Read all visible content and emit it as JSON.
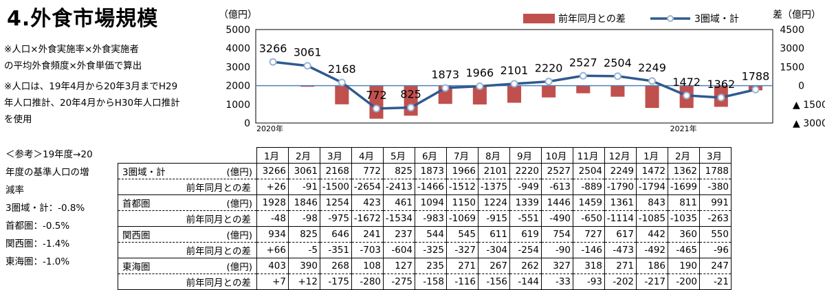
{
  "title": "4.外食市場規模",
  "notes": [
    "※人口×外食実施率×外食実施者",
    "の平均外食頻度×外食単価で算出",
    "※人口は、19年4月から20年3月までH29",
    "年人口推計、20年4月からH30年人口推計",
    "を使用"
  ],
  "reference": [
    "＜参考＞19年度→20",
    "年度の基準人口の増",
    "減率",
    "3圏域・計：‐0.8%",
    "首都圏：‐0.5%",
    "関西圏：‐1.4%",
    "東海圏：‐1.0%"
  ],
  "colors": {
    "bar": "#c0504d",
    "line": "#2f5a8f",
    "zero_line": "#4f81bd"
  },
  "chart_data": {
    "type": "bar+line",
    "categories": [
      "1月",
      "2月",
      "3月",
      "4月",
      "5月",
      "6月",
      "7月",
      "8月",
      "9月",
      "10月",
      "11月",
      "12月",
      "1月",
      "2月",
      "3月"
    ],
    "year_markers": [
      {
        "label": "2020年",
        "index": 0
      },
      {
        "label": "2021年",
        "index": 12
      }
    ],
    "left_axis": {
      "unit": "（億円）",
      "range": [
        0,
        5000
      ],
      "ticks": [
        "5000",
        "4000",
        "3000",
        "2000",
        "1000",
        "0"
      ]
    },
    "right_axis": {
      "unit": "差（億円）",
      "range": [
        -3000,
        4500
      ],
      "ticks": [
        "4500",
        "3000",
        "1500",
        "0",
        "▲ 1500",
        "▲ 3000"
      ],
      "tick_values": [
        4500,
        3000,
        1500,
        0,
        -1500,
        -3000
      ]
    },
    "series": [
      {
        "name": "前年同月との差",
        "type": "bar",
        "axis": "right",
        "values": [
          26,
          -91,
          -1500,
          -2654,
          -2413,
          -1466,
          -1512,
          -1375,
          -949,
          -613,
          -889,
          -1790,
          -1794,
          -1699,
          -380
        ]
      },
      {
        "name": "3圏域・計",
        "type": "line",
        "axis": "left",
        "values": [
          3266,
          3061,
          2168,
          772,
          825,
          1873,
          1966,
          2101,
          2220,
          2527,
          2504,
          2249,
          1472,
          1362,
          1788
        ]
      }
    ],
    "legend_position": "top-right"
  },
  "table": {
    "rows": [
      {
        "name": "3圏域・計",
        "unit": "(億円)",
        "values": [
          "3266",
          "3061",
          "2168",
          "772",
          "825",
          "1873",
          "1966",
          "2101",
          "2220",
          "2527",
          "2504",
          "2249",
          "1472",
          "1362",
          "1788"
        ],
        "diff_label": "前年同月との差",
        "diff": [
          "+26",
          "-91",
          "-1500",
          "-2654",
          "-2413",
          "-1466",
          "-1512",
          "-1375",
          "-949",
          "-613",
          "-889",
          "-1790",
          "-1794",
          "-1699",
          "-380"
        ]
      },
      {
        "name": "首都圏",
        "unit": "(億円)",
        "values": [
          "1928",
          "1846",
          "1254",
          "423",
          "461",
          "1094",
          "1150",
          "1224",
          "1339",
          "1446",
          "1459",
          "1361",
          "843",
          "811",
          "991"
        ],
        "diff_label": "前年同月との差",
        "diff": [
          "-48",
          "-98",
          "-975",
          "-1672",
          "-1534",
          "-983",
          "-1069",
          "-915",
          "-551",
          "-490",
          "-650",
          "-1114",
          "-1085",
          "-1035",
          "-263"
        ]
      },
      {
        "name": "関西圏",
        "unit": "(億円)",
        "values": [
          "934",
          "825",
          "646",
          "241",
          "237",
          "544",
          "545",
          "611",
          "619",
          "754",
          "727",
          "617",
          "442",
          "360",
          "550"
        ],
        "diff_label": "前年同月との差",
        "diff": [
          "+66",
          "-5",
          "-351",
          "-703",
          "-604",
          "-325",
          "-327",
          "-304",
          "-254",
          "-90",
          "-146",
          "-473",
          "-492",
          "-465",
          "-96"
        ]
      },
      {
        "name": "東海圏",
        "unit": "(億円)",
        "values": [
          "403",
          "390",
          "268",
          "108",
          "127",
          "235",
          "271",
          "267",
          "262",
          "327",
          "318",
          "271",
          "186",
          "190",
          "247"
        ],
        "diff_label": "前年同月との差",
        "diff": [
          "+7",
          "+12",
          "-175",
          "-280",
          "-275",
          "-158",
          "-116",
          "-156",
          "-144",
          "-33",
          "-93",
          "-202",
          "-217",
          "-200",
          "-21"
        ]
      }
    ]
  }
}
